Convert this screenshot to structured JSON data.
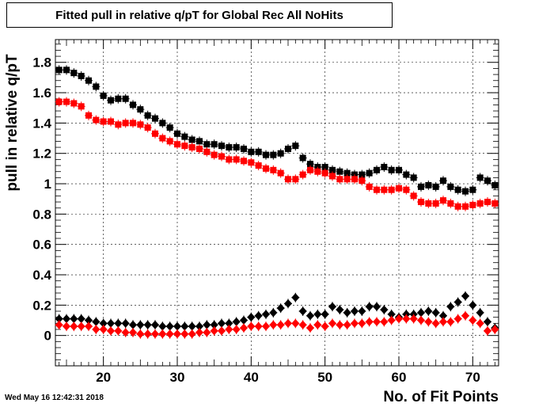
{
  "title": "Fitted pull in relative q/pT for Global Rec All NoHits",
  "timestamp": "Wed May 16 12:42:31 2018",
  "chart_data": {
    "type": "scatter",
    "title": "Fitted pull in relative q/pT for Global Rec All NoHits",
    "xlabel": "No. of Fit Points",
    "ylabel": "pull in relative q/pT",
    "xlim": [
      13.5,
      73.5
    ],
    "ylim": [
      -0.2,
      1.95
    ],
    "x_ticks": [
      20,
      30,
      40,
      50,
      60,
      70
    ],
    "y_ticks": [
      0,
      0.2,
      0.4,
      0.6,
      0.8,
      1,
      1.2,
      1.4,
      1.6,
      1.8
    ],
    "x_tick_labels": [
      "20",
      "30",
      "40",
      "50",
      "60",
      "70"
    ],
    "y_tick_labels": [
      "0",
      "0.2",
      "0.4",
      "0.6",
      "0.8",
      "1",
      "1.2",
      "1.4",
      "1.6",
      "1.8"
    ],
    "grid": true,
    "x": [
      14,
      15,
      16,
      17,
      18,
      19,
      20,
      21,
      22,
      23,
      24,
      25,
      26,
      27,
      28,
      29,
      30,
      31,
      32,
      33,
      34,
      35,
      36,
      37,
      38,
      39,
      40,
      41,
      42,
      43,
      44,
      45,
      46,
      47,
      48,
      49,
      50,
      51,
      52,
      53,
      54,
      55,
      56,
      57,
      58,
      59,
      60,
      61,
      62,
      63,
      64,
      65,
      66,
      67,
      68,
      69,
      70,
      71,
      72,
      73
    ],
    "series": [
      {
        "color": "#000000",
        "marker": "square",
        "values": [
          1.75,
          1.75,
          1.73,
          1.71,
          1.68,
          1.64,
          1.58,
          1.55,
          1.56,
          1.56,
          1.52,
          1.49,
          1.45,
          1.43,
          1.4,
          1.37,
          1.33,
          1.31,
          1.29,
          1.28,
          1.26,
          1.26,
          1.25,
          1.24,
          1.24,
          1.23,
          1.21,
          1.21,
          1.19,
          1.19,
          1.2,
          1.23,
          1.25,
          1.17,
          1.13,
          1.11,
          1.11,
          1.09,
          1.08,
          1.07,
          1.06,
          1.06,
          1.07,
          1.09,
          1.11,
          1.09,
          1.09,
          1.06,
          1.04,
          0.98,
          0.99,
          0.98,
          1.02,
          0.98,
          0.96,
          0.95,
          0.96,
          1.04,
          1.02,
          0.99
        ]
      },
      {
        "color": "#ff0000",
        "marker": "square",
        "values": [
          1.54,
          1.54,
          1.53,
          1.51,
          1.45,
          1.42,
          1.41,
          1.41,
          1.39,
          1.4,
          1.4,
          1.39,
          1.37,
          1.33,
          1.3,
          1.28,
          1.26,
          1.25,
          1.24,
          1.23,
          1.21,
          1.19,
          1.18,
          1.16,
          1.16,
          1.15,
          1.14,
          1.12,
          1.1,
          1.09,
          1.07,
          1.03,
          1.03,
          1.06,
          1.09,
          1.08,
          1.07,
          1.05,
          1.03,
          1.03,
          1.03,
          1.02,
          0.98,
          0.96,
          0.96,
          0.96,
          0.97,
          0.96,
          0.92,
          0.88,
          0.87,
          0.87,
          0.89,
          0.87,
          0.85,
          0.85,
          0.86,
          0.87,
          0.88,
          0.87
        ]
      },
      {
        "color": "#000000",
        "marker": "diamond",
        "values": [
          0.11,
          0.11,
          0.11,
          0.11,
          0.1,
          0.09,
          0.08,
          0.08,
          0.08,
          0.08,
          0.07,
          0.07,
          0.07,
          0.07,
          0.06,
          0.06,
          0.06,
          0.06,
          0.06,
          0.06,
          0.07,
          0.07,
          0.08,
          0.08,
          0.09,
          0.1,
          0.12,
          0.13,
          0.14,
          0.15,
          0.18,
          0.21,
          0.25,
          0.16,
          0.13,
          0.14,
          0.14,
          0.19,
          0.17,
          0.15,
          0.16,
          0.16,
          0.19,
          0.19,
          0.17,
          0.14,
          0.12,
          0.14,
          0.14,
          0.15,
          0.16,
          0.15,
          0.13,
          0.19,
          0.22,
          0.26,
          0.2,
          0.15,
          0.09,
          0.05
        ]
      },
      {
        "color": "#ff0000",
        "marker": "diamond",
        "values": [
          0.07,
          0.06,
          0.06,
          0.06,
          0.06,
          0.04,
          0.04,
          0.03,
          0.03,
          0.02,
          0.02,
          0.01,
          0.01,
          0.01,
          0.01,
          0.01,
          0.01,
          0.01,
          0.01,
          0.02,
          0.02,
          0.03,
          0.03,
          0.04,
          0.04,
          0.05,
          0.06,
          0.06,
          0.06,
          0.07,
          0.07,
          0.08,
          0.08,
          0.07,
          0.05,
          0.07,
          0.06,
          0.08,
          0.07,
          0.07,
          0.08,
          0.08,
          0.09,
          0.09,
          0.09,
          0.1,
          0.11,
          0.11,
          0.11,
          0.1,
          0.09,
          0.08,
          0.09,
          0.09,
          0.11,
          0.13,
          0.1,
          0.08,
          0.03,
          0.04
        ]
      }
    ]
  }
}
